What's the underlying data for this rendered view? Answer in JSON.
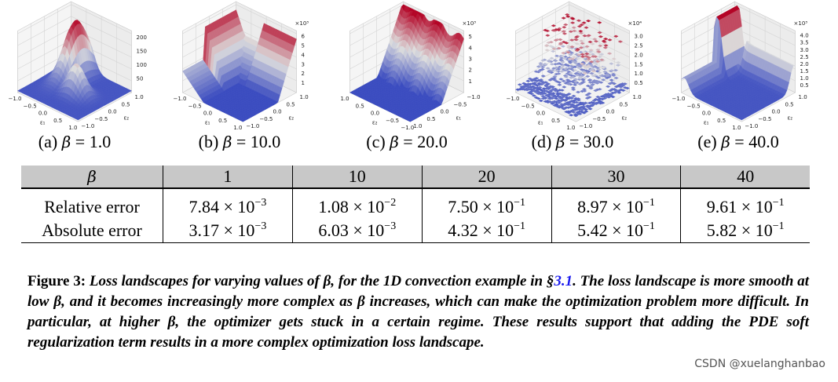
{
  "panels": [
    {
      "label": "(a)",
      "beta_sym": "β",
      "eq": " = 1.0",
      "z_ticks": [
        "50",
        "100",
        "150",
        "200"
      ],
      "z_mult": "",
      "x_label": "ε₁",
      "y_label": "ε₂",
      "x_ticks": [
        "−1.0",
        "−0.5",
        "0.0",
        "0.5",
        "1.0"
      ],
      "y_ticks": [
        "−1.0",
        "−0.5",
        "0.0",
        "0.5",
        "1.0"
      ],
      "surface": "a"
    },
    {
      "label": "(b)",
      "beta_sym": "β",
      "eq": " = 10.0",
      "z_ticks": [
        "1",
        "2",
        "3",
        "4",
        "5",
        "6"
      ],
      "z_mult": "×10³",
      "x_label": "ε₁",
      "y_label": "ε₂",
      "x_ticks": [
        "−1.0",
        "−0.5",
        "0.0",
        "0.5",
        "1.0"
      ],
      "y_ticks": [
        "−1.0",
        "−0.5",
        "0.0",
        "0.5",
        "1.0"
      ],
      "surface": "b"
    },
    {
      "label": "(c)",
      "beta_sym": "β",
      "eq": " = 20.0",
      "z_ticks": [
        "1",
        "2",
        "3",
        "4",
        "5"
      ],
      "z_mult": "×10³",
      "x_label": "ε₂",
      "y_label": "ε₁",
      "x_ticks": [
        "1.0",
        "0.5",
        "0.0",
        "−0.5",
        "−1.0"
      ],
      "y_ticks": [
        "1.0",
        "0.5",
        "0.0",
        "−0.5",
        "−1.0"
      ],
      "surface": "c"
    },
    {
      "label": "(d)",
      "beta_sym": "β",
      "eq": " = 30.0",
      "z_ticks": [
        "0.5",
        "1.0",
        "1.5",
        "2.0",
        "2.5",
        "3.0"
      ],
      "z_mult": "×10⁴",
      "x_label": "ε₁",
      "y_label": "ε₂",
      "x_ticks": [
        "−1.0",
        "−0.5",
        "0.0",
        "0.5",
        "1.0"
      ],
      "y_ticks": [
        "−1.0",
        "−0.5",
        "0.0",
        "0.5",
        "1.0"
      ],
      "surface": "d"
    },
    {
      "label": "(e)",
      "beta_sym": "β",
      "eq": " = 40.0",
      "z_ticks": [
        "0.5",
        "1.0",
        "1.5",
        "2.0",
        "2.5",
        "3.0",
        "3.5",
        "4.0"
      ],
      "z_mult": "×10³",
      "x_label": "ε₁",
      "y_label": "ε₂",
      "x_ticks": [
        "−1.0",
        "−0.5",
        "0.0",
        "0.5",
        "1.0"
      ],
      "y_ticks": [
        "−1.0",
        "−0.5",
        "0.0",
        "0.5",
        "1.0"
      ],
      "surface": "e"
    }
  ],
  "table": {
    "header": [
      "β",
      "1",
      "10",
      "20",
      "30",
      "40"
    ],
    "rows": [
      {
        "label": "Relative error",
        "cells": [
          {
            "m": "7.84 × 10",
            "e": "−3"
          },
          {
            "m": "1.08 × 10",
            "e": "−2"
          },
          {
            "m": "7.50 × 10",
            "e": "−1"
          },
          {
            "m": "8.97 × 10",
            "e": "−1"
          },
          {
            "m": "9.61 × 10",
            "e": "−1"
          }
        ]
      },
      {
        "label": "Absolute error",
        "cells": [
          {
            "m": "3.17 × 10",
            "e": "−3"
          },
          {
            "m": "6.03 × 10",
            "e": "−3"
          },
          {
            "m": "4.32 × 10",
            "e": "−1"
          },
          {
            "m": "5.42 × 10",
            "e": "−1"
          },
          {
            "m": "5.82 × 10",
            "e": "−1"
          }
        ]
      }
    ]
  },
  "caption": {
    "label": "Figure 3:",
    "title_pre": "Loss landscapes for varying values of β, for the 1D convection example in §",
    "title_link": "3.1",
    "title_post": ".",
    "body": "The loss landscape is more smooth at low β, and it becomes increasingly more complex as β increases, which can make the optimization problem more difficult. In particular, at higher β, the optimizer gets stuck in a certain regime. These results support that adding the PDE soft regularization term results in a more complex optimization loss landscape."
  },
  "watermark": "CSDN @xuelanghanbao",
  "colors": {
    "low": "#3b4cc0",
    "mid": "#dddddd",
    "high": "#b40426",
    "link": "#1a1aee",
    "header_bg": "#c8c8c8"
  }
}
